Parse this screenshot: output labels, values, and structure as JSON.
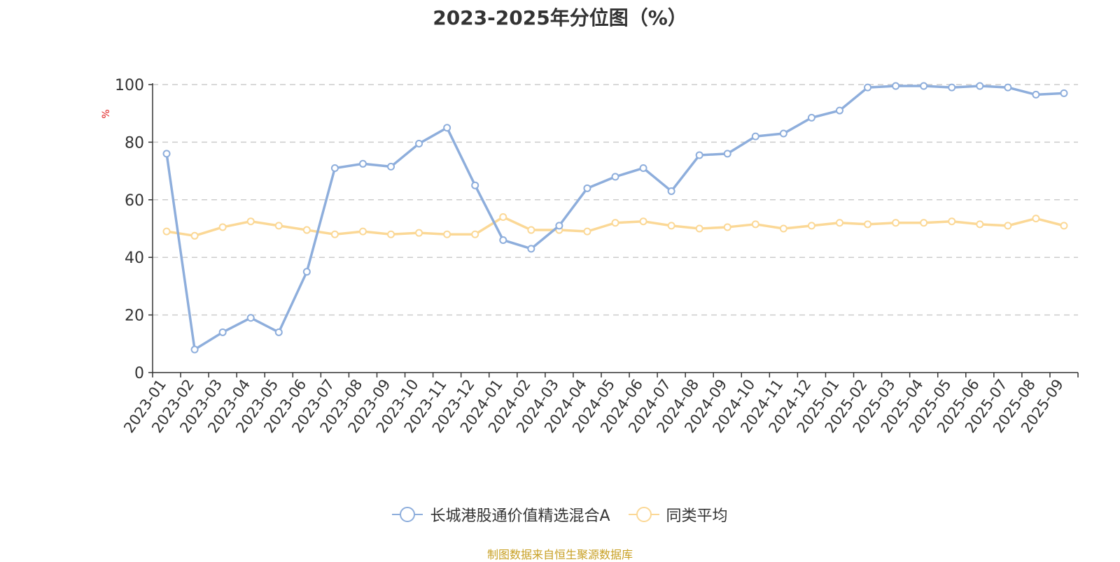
{
  "title": "2023-2025年分位图（%）",
  "source_note": "制图数据来自恒生聚源数据库",
  "colors": {
    "series_a": "#8eaedc",
    "series_b": "#fbd896",
    "axis": "#333333",
    "grid": "#cccccc",
    "ylabel": "#e02020",
    "source": "#c8a024"
  },
  "legend": [
    {
      "label": "长城港股通价值精选混合A"
    },
    {
      "label": "同类平均"
    }
  ],
  "chart_data": {
    "type": "line",
    "title": "2023-2025年分位图（%）",
    "ylabel": "%",
    "xlabel": "",
    "ylim": [
      0,
      100
    ],
    "yticks": [
      0,
      20,
      40,
      60,
      80,
      100
    ],
    "grid": true,
    "legend_position": "bottom",
    "categories": [
      "2023-01",
      "2023-02",
      "2023-03",
      "2023-04",
      "2023-05",
      "2023-06",
      "2023-07",
      "2023-08",
      "2023-09",
      "2023-10",
      "2023-11",
      "2023-12",
      "2024-01",
      "2024-02",
      "2024-03",
      "2024-04",
      "2024-05",
      "2024-06",
      "2024-07",
      "2024-08",
      "2024-09",
      "2024-10",
      "2024-11",
      "2024-12",
      "2025-01",
      "2025-02",
      "2025-03",
      "2025-04",
      "2025-05",
      "2025-06",
      "2025-07",
      "2025-08",
      "2025-09"
    ],
    "series": [
      {
        "name": "长城港股通价值精选混合A",
        "values": [
          76,
          8,
          14,
          19,
          14,
          35,
          71,
          72.5,
          71.5,
          79.5,
          85,
          65,
          46,
          43,
          51,
          64,
          68,
          71,
          63,
          75.5,
          76,
          82,
          83,
          88.5,
          91,
          99,
          99.5,
          99.5,
          99,
          99.5,
          99,
          96.5,
          97
        ]
      },
      {
        "name": "同类平均",
        "values": [
          49,
          47.5,
          50.5,
          52.5,
          51,
          49.5,
          48,
          49,
          48,
          48.5,
          48,
          48,
          54,
          49.5,
          49.5,
          49,
          52,
          52.5,
          51,
          50,
          50.5,
          51.5,
          50,
          51,
          52,
          51.5,
          52,
          52,
          52.5,
          51.5,
          51,
          53.5,
          51
        ]
      }
    ]
  }
}
